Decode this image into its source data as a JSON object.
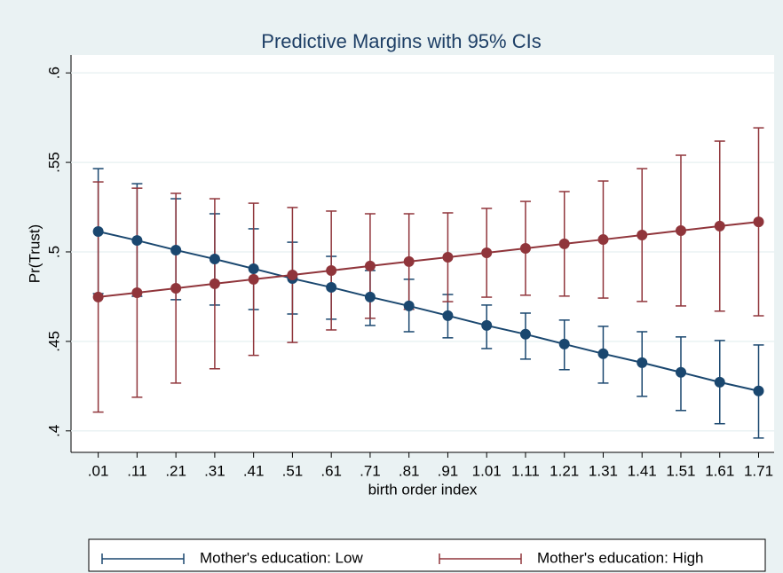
{
  "chart_data": {
    "type": "line",
    "title": "Predictive Margins with 95% CIs",
    "x_label": "birth order index",
    "y_label": "Pr(Trust)",
    "x": [
      0.01,
      0.11,
      0.21,
      0.31,
      0.41,
      0.51,
      0.61,
      0.71,
      0.81,
      0.91,
      1.01,
      1.11,
      1.21,
      1.31,
      1.41,
      1.51,
      1.61,
      1.71
    ],
    "xlim": [
      -0.06,
      1.75
    ],
    "xticks": [
      {
        "value": 0.01,
        "label": ".01"
      },
      {
        "value": 0.11,
        "label": ".11"
      },
      {
        "value": 0.21,
        "label": ".21"
      },
      {
        "value": 0.31,
        "label": ".31"
      },
      {
        "value": 0.41,
        "label": ".41"
      },
      {
        "value": 0.51,
        "label": ".51"
      },
      {
        "value": 0.61,
        "label": ".61"
      },
      {
        "value": 0.71,
        "label": ".71"
      },
      {
        "value": 0.81,
        "label": ".81"
      },
      {
        "value": 0.91,
        "label": ".91"
      },
      1.01,
      1.11,
      1.21,
      1.31,
      1.41,
      1.51,
      1.61,
      1.71
    ],
    "ylim": [
      0.388,
      0.61
    ],
    "yticks": [
      {
        "value": 0.4,
        "label": ".4"
      },
      {
        "value": 0.45,
        "label": ".45"
      },
      {
        "value": 0.5,
        "label": ".5"
      },
      {
        "value": 0.55,
        "label": ".55"
      },
      {
        "value": 0.6,
        "label": ".6"
      }
    ],
    "grid": true,
    "legend": "bottom",
    "series": [
      {
        "name": "Mother's education: Low",
        "color": "#1a476f",
        "values": [
          0.5114,
          0.5064,
          0.501,
          0.496,
          0.4906,
          0.4851,
          0.4802,
          0.4748,
          0.4698,
          0.4644,
          0.4589,
          0.454,
          0.4485,
          0.4431,
          0.4381,
          0.4327,
          0.4272,
          0.4223
        ],
        "lower": [
          0.4767,
          0.4752,
          0.4733,
          0.4703,
          0.4678,
          0.4653,
          0.4624,
          0.4589,
          0.4554,
          0.452,
          0.446,
          0.4401,
          0.4342,
          0.4267,
          0.4193,
          0.4114,
          0.404,
          0.396
        ],
        "upper": [
          0.5465,
          0.5381,
          0.5297,
          0.5213,
          0.5129,
          0.5054,
          0.4975,
          0.4896,
          0.4847,
          0.4762,
          0.4703,
          0.4658,
          0.4619,
          0.4584,
          0.4554,
          0.4525,
          0.4505,
          0.448
        ]
      },
      {
        "name": "Mother's education: High",
        "color": "#90353b",
        "values": [
          0.4748,
          0.4772,
          0.4797,
          0.4822,
          0.4847,
          0.4871,
          0.4896,
          0.4921,
          0.4946,
          0.497,
          0.4995,
          0.502,
          0.5045,
          0.5069,
          0.5094,
          0.5119,
          0.5144,
          0.5168
        ],
        "lower": [
          0.4105,
          0.4188,
          0.4267,
          0.4347,
          0.4422,
          0.4494,
          0.4564,
          0.4629,
          0.4679,
          0.4722,
          0.4747,
          0.4758,
          0.4753,
          0.4742,
          0.4723,
          0.4698,
          0.4669,
          0.4643
        ],
        "upper": [
          0.5391,
          0.5356,
          0.5327,
          0.5297,
          0.5272,
          0.5248,
          0.5228,
          0.5213,
          0.5213,
          0.5218,
          0.5243,
          0.5282,
          0.5337,
          0.5396,
          0.5465,
          0.554,
          0.5619,
          0.5693
        ]
      }
    ]
  }
}
